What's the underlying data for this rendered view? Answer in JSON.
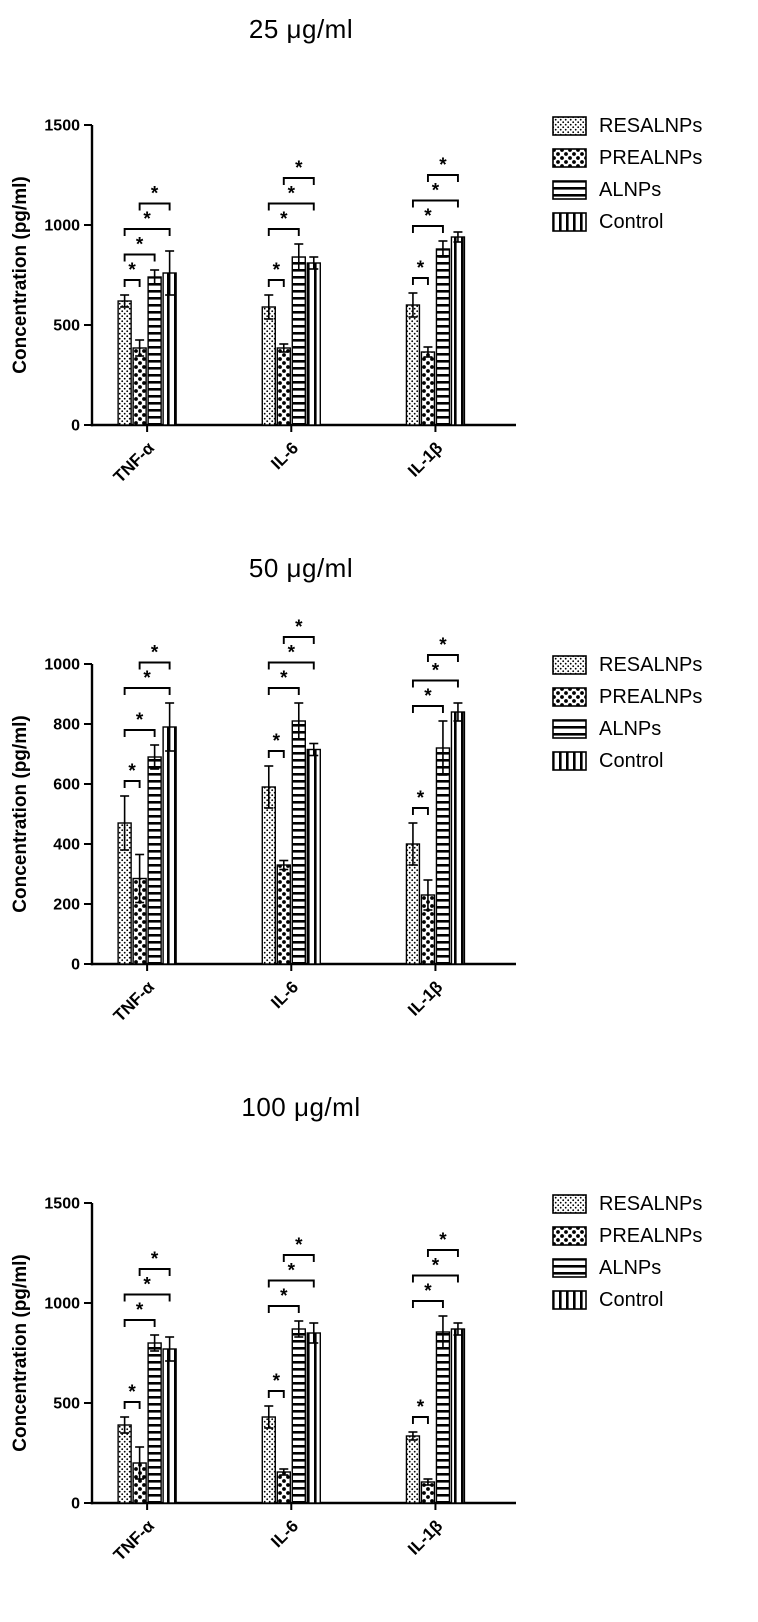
{
  "figure": {
    "background": "#ffffff",
    "ink": "#000000",
    "panel_count": 3
  },
  "legend": {
    "position": "right",
    "items": [
      {
        "label": "RESALNPs",
        "pattern": "dots-fine"
      },
      {
        "label": "PREALNPs",
        "pattern": "dots-coarse"
      },
      {
        "label": "ALNPs",
        "pattern": "hlines"
      },
      {
        "label": "Control",
        "pattern": "vlines"
      }
    ]
  },
  "chart_data": [
    {
      "type": "bar",
      "title": "25 μg/ml",
      "xlabel": "",
      "ylabel": "Concentration (pg/ml)",
      "categories": [
        "TNF-α",
        "IL-6",
        "IL-1β"
      ],
      "ylim": [
        0,
        1500
      ],
      "yticks": [
        0,
        500,
        1000,
        1500
      ],
      "grid": false,
      "legend_position": "right",
      "series": [
        {
          "name": "RESALNPs",
          "pattern": "dots-fine",
          "values": [
            620,
            590,
            600
          ],
          "errors": [
            30,
            60,
            60
          ]
        },
        {
          "name": "PREALNPs",
          "pattern": "dots-coarse",
          "values": [
            385,
            385,
            365
          ],
          "errors": [
            40,
            20,
            25
          ]
        },
        {
          "name": "ALNPs",
          "pattern": "hlines",
          "values": [
            740,
            840,
            880
          ],
          "errors": [
            35,
            65,
            40
          ]
        },
        {
          "name": "Control",
          "pattern": "vlines",
          "values": [
            760,
            810,
            940
          ],
          "errors": [
            110,
            30,
            25
          ]
        }
      ],
      "significance": {
        "symbol": "*",
        "brackets": [
          [
            0,
            1
          ],
          [
            0,
            2
          ],
          [
            0,
            3
          ],
          [
            1,
            3
          ]
        ]
      }
    },
    {
      "type": "bar",
      "title": "50 μg/ml",
      "xlabel": "",
      "ylabel": "Concentration (pg/ml)",
      "categories": [
        "TNF-α",
        "IL-6",
        "IL-1β"
      ],
      "ylim": [
        0,
        1000
      ],
      "yticks": [
        0,
        200,
        400,
        600,
        800,
        1000
      ],
      "grid": false,
      "legend_position": "right",
      "series": [
        {
          "name": "RESALNPs",
          "pattern": "dots-fine",
          "values": [
            470,
            590,
            400
          ],
          "errors": [
            90,
            70,
            70
          ]
        },
        {
          "name": "PREALNPs",
          "pattern": "dots-coarse",
          "values": [
            285,
            330,
            230
          ],
          "errors": [
            80,
            15,
            50
          ]
        },
        {
          "name": "ALNPs",
          "pattern": "hlines",
          "values": [
            690,
            810,
            720
          ],
          "errors": [
            40,
            60,
            90
          ]
        },
        {
          "name": "Control",
          "pattern": "vlines",
          "values": [
            790,
            715,
            840
          ],
          "errors": [
            80,
            20,
            30
          ]
        }
      ],
      "significance": {
        "symbol": "*",
        "brackets": [
          [
            0,
            1
          ],
          [
            0,
            2
          ],
          [
            0,
            3
          ],
          [
            1,
            3
          ]
        ]
      }
    },
    {
      "type": "bar",
      "title": "100 μg/ml",
      "xlabel": "",
      "ylabel": "Concentration (pg/ml)",
      "categories": [
        "TNF-α",
        "IL-6",
        "IL-1β"
      ],
      "ylim": [
        0,
        1500
      ],
      "yticks": [
        0,
        500,
        1000,
        1500
      ],
      "grid": false,
      "legend_position": "right",
      "series": [
        {
          "name": "RESALNPs",
          "pattern": "dots-fine",
          "values": [
            390,
            430,
            335
          ],
          "errors": [
            40,
            55,
            20
          ]
        },
        {
          "name": "PREALNPs",
          "pattern": "dots-coarse",
          "values": [
            200,
            155,
            105
          ],
          "errors": [
            80,
            15,
            15
          ]
        },
        {
          "name": "ALNPs",
          "pattern": "hlines",
          "values": [
            800,
            870,
            855
          ],
          "errors": [
            40,
            40,
            80
          ]
        },
        {
          "name": "Control",
          "pattern": "vlines",
          "values": [
            770,
            850,
            870
          ],
          "errors": [
            60,
            50,
            30
          ]
        }
      ],
      "significance": {
        "symbol": "*",
        "brackets": [
          [
            0,
            1
          ],
          [
            0,
            2
          ],
          [
            0,
            3
          ],
          [
            1,
            3
          ]
        ]
      }
    }
  ]
}
